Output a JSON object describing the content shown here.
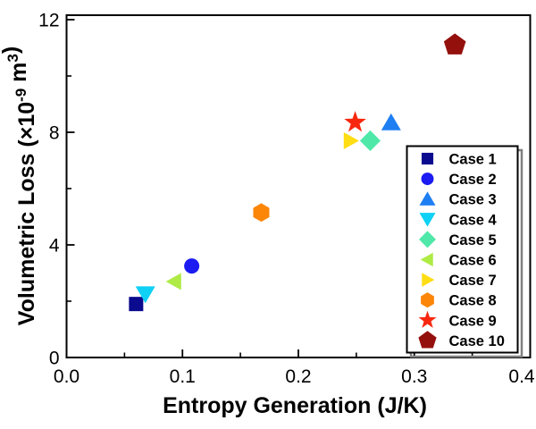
{
  "figure": {
    "background": "#FFFFFF",
    "frame_color": "#000000",
    "text_color": "#000000"
  },
  "chart_data": {
    "type": "scatter",
    "title": "",
    "xlabel": "Entropy Generation (J/K)",
    "ylabel": "Volumetric Loss (×10⁻⁹ m³)",
    "ylabel_parts": [
      {
        "text": "Volumetric Loss (×10",
        "sup": false
      },
      {
        "text": "-9",
        "sup": true
      },
      {
        "text": " m",
        "sup": false
      },
      {
        "text": "3",
        "sup": true
      },
      {
        "text": ")",
        "sup": false
      }
    ],
    "xlim": [
      0.0,
      0.4
    ],
    "ylim": [
      0,
      12
    ],
    "x_major_ticks": [
      0.0,
      0.1,
      0.2,
      0.3,
      0.4
    ],
    "x_tick_labels": [
      "0.0",
      "0.1",
      "0.2",
      "0.3",
      "0.4"
    ],
    "x_minor_ticks": [
      0.05,
      0.15,
      0.25,
      0.35
    ],
    "y_major_ticks": [
      0,
      4,
      8,
      12
    ],
    "y_tick_labels": [
      "0",
      "4",
      "8",
      "12"
    ],
    "y_minor_ticks": [
      2,
      6,
      10
    ],
    "grid": false,
    "legend": {
      "position": "inside-lower-right",
      "border_color": "#000000",
      "shadow_color": "#808080",
      "fill": "#FFFFFF"
    },
    "series": [
      {
        "name": "Case 1",
        "marker": "square",
        "color": "#0B0B8F",
        "size": 16,
        "x": 0.06,
        "y": 1.9
      },
      {
        "name": "Case 2",
        "marker": "circle",
        "color": "#1B1BF2",
        "size": 17,
        "x": 0.108,
        "y": 3.25
      },
      {
        "name": "Case 3",
        "marker": "triangle-up",
        "color": "#1E7FF2",
        "size": 22,
        "x": 0.28,
        "y": 8.35
      },
      {
        "name": "Case 4",
        "marker": "triangle-down",
        "color": "#0FD0F5",
        "size": 22,
        "x": 0.068,
        "y": 2.25
      },
      {
        "name": "Case 5",
        "marker": "diamond",
        "color": "#4FE8A8",
        "size": 21,
        "x": 0.262,
        "y": 7.7
      },
      {
        "name": "Case 6",
        "marker": "triangle-left",
        "color": "#AEEB45",
        "size": 19,
        "x": 0.093,
        "y": 2.7
      },
      {
        "name": "Case 7",
        "marker": "triangle-right",
        "color": "#FFDD13",
        "size": 19,
        "x": 0.245,
        "y": 7.7
      },
      {
        "name": "Case 8",
        "marker": "hexagon",
        "color": "#FB8608",
        "size": 20,
        "x": 0.168,
        "y": 5.15
      },
      {
        "name": "Case 9",
        "marker": "star",
        "color": "#F7270E",
        "size": 23,
        "x": 0.249,
        "y": 8.35
      },
      {
        "name": "Case 10",
        "marker": "pentagon",
        "color": "#94100D",
        "size": 24,
        "x": 0.335,
        "y": 11.1
      }
    ]
  }
}
